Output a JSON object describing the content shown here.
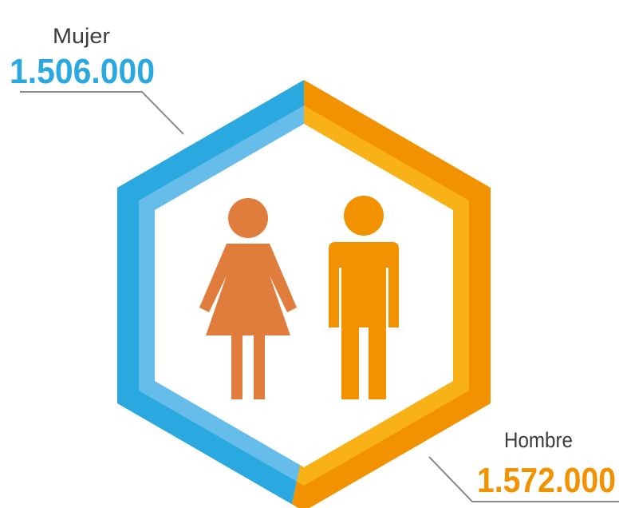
{
  "labels": [
    {
      "name": "Mujer",
      "value": "1.506.000"
    },
    {
      "name": "Hombre",
      "value": "1.572.000"
    }
  ]
}
